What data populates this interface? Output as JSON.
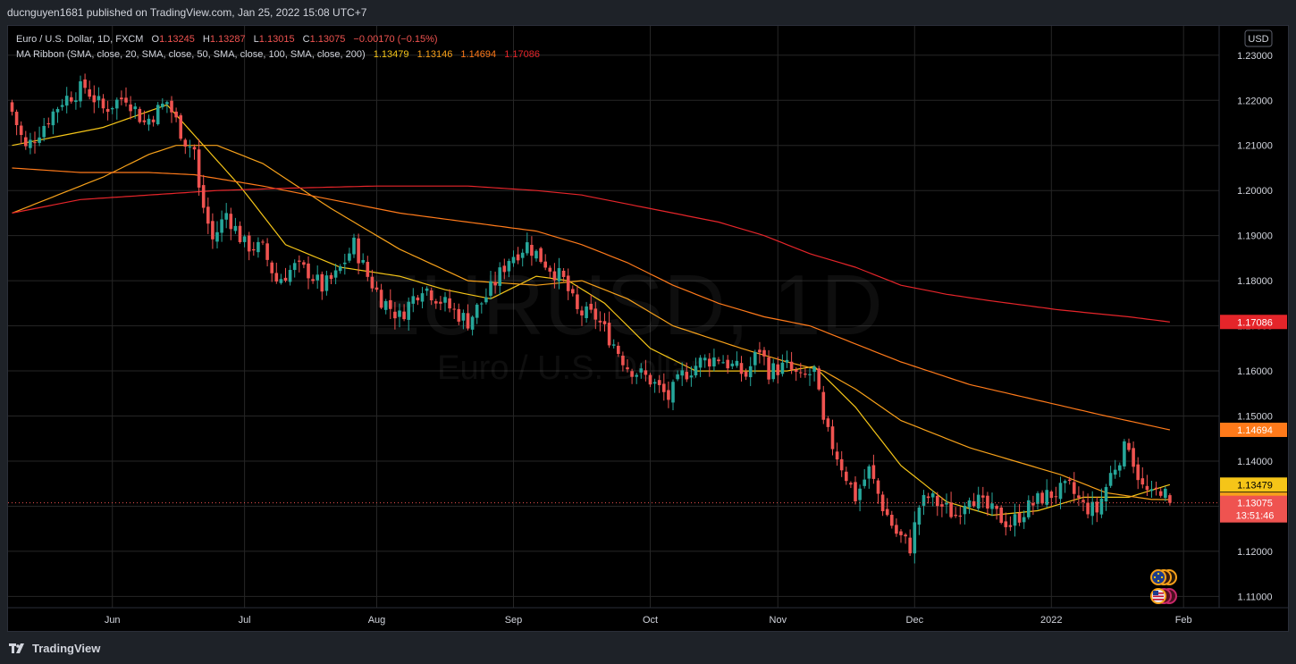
{
  "header": {
    "published_line": "ducnguyen1681 published on TradingView.com, Jan 25, 2022 15:08 UTC+7"
  },
  "footer": {
    "brand": "TradingView"
  },
  "legend": {
    "symbol_line": {
      "name": "Euro / U.S. Dollar, 1D, FXCM",
      "o_label": "O",
      "o_value": "1.13245",
      "h_label": "H",
      "h_value": "1.13287",
      "l_label": "L",
      "l_value": "1.13015",
      "c_label": "C",
      "c_value": "1.13075",
      "change": "−0.00170 (−0.15%)"
    },
    "ma_line": {
      "name": "MA Ribbon (SMA, close, 20, SMA, close, 50, SMA, close, 100, SMA, close, 200)",
      "v20": "1.13479",
      "v50": "1.13146",
      "v100": "1.14694",
      "v200": "1.17086"
    }
  },
  "currency_button": "USD",
  "watermark": {
    "symbol": "EURUSD, 1D",
    "description": "Euro / U.S. Dollar"
  },
  "price_labels": {
    "ma200": "1.17086",
    "ma100": "1.14694",
    "ma20": "1.13479",
    "ma50": "1.13146",
    "last": "1.13075",
    "countdown": "13:51:46"
  },
  "colors": {
    "up": "#26a69a",
    "down": "#ef5350",
    "ma20": "#f5c518",
    "ma50": "#f7a11a",
    "ma100": "#ff7a1a",
    "ma200": "#e5252a",
    "text": "#d1d4dc",
    "grid": "#262626"
  },
  "chart_data": {
    "type": "candlestick",
    "symbol": "EURUSD",
    "interval": "1D",
    "ylim": [
      1.1075,
      1.2365
    ],
    "y_ticks": [
      "1.11000",
      "1.12000",
      "1.13000",
      "1.14000",
      "1.15000",
      "1.16000",
      "1.17000",
      "1.18000",
      "1.19000",
      "1.20000",
      "1.21000",
      "1.22000",
      "1.23000"
    ],
    "x_ticks": [
      "Jun",
      "Jul",
      "Aug",
      "Sep",
      "Oct",
      "Nov",
      "Dec",
      "2022",
      "Feb"
    ],
    "close_anchors": [
      [
        0,
        1.2175
      ],
      [
        3,
        1.2092
      ],
      [
        8,
        1.216
      ],
      [
        11,
        1.22
      ],
      [
        16,
        1.223
      ],
      [
        20,
        1.218
      ],
      [
        25,
        1.221
      ],
      [
        29,
        1.215
      ],
      [
        34,
        1.2197
      ],
      [
        38,
        1.211
      ],
      [
        40,
        1.209
      ],
      [
        41,
        1.2
      ],
      [
        44,
        1.189
      ],
      [
        47,
        1.195
      ],
      [
        51,
        1.188
      ],
      [
        55,
        1.187
      ],
      [
        58,
        1.18
      ],
      [
        62,
        1.183
      ],
      [
        65,
        1.182
      ],
      [
        68,
        1.1785
      ],
      [
        71,
        1.181
      ],
      [
        75,
        1.188
      ],
      [
        78,
        1.181
      ],
      [
        81,
        1.176
      ],
      [
        85,
        1.172
      ],
      [
        90,
        1.179
      ],
      [
        96,
        1.174
      ],
      [
        100,
        1.171
      ],
      [
        105,
        1.178
      ],
      [
        109,
        1.185
      ],
      [
        113,
        1.188
      ],
      [
        117,
        1.184
      ],
      [
        121,
        1.18
      ],
      [
        124,
        1.173
      ],
      [
        128,
        1.172
      ],
      [
        132,
        1.166
      ],
      [
        135,
        1.161
      ],
      [
        140,
        1.158
      ],
      [
        144,
        1.154
      ],
      [
        147,
        1.159
      ],
      [
        151,
        1.162
      ],
      [
        155,
        1.163
      ],
      [
        158,
        1.161
      ],
      [
        161,
        1.159
      ],
      [
        164,
        1.165
      ],
      [
        166,
        1.16
      ],
      [
        170,
        1.161
      ],
      [
        173,
        1.158
      ],
      [
        176,
        1.16
      ],
      [
        178,
        1.148
      ],
      [
        182,
        1.139
      ],
      [
        185,
        1.132
      ],
      [
        188,
        1.138
      ],
      [
        191,
        1.13
      ],
      [
        194,
        1.124
      ],
      [
        197,
        1.121
      ],
      [
        199,
        1.13
      ],
      [
        201,
        1.132
      ],
      [
        204,
        1.13
      ],
      [
        207,
        1.128
      ],
      [
        210,
        1.133
      ],
      [
        213,
        1.13
      ],
      [
        216,
        1.128
      ],
      [
        219,
        1.126
      ],
      [
        222,
        1.129
      ],
      [
        226,
        1.132
      ],
      [
        229,
        1.133
      ],
      [
        232,
        1.134
      ],
      [
        235,
        1.13
      ],
      [
        238,
        1.129
      ],
      [
        241,
        1.137
      ],
      [
        243,
        1.141
      ],
      [
        245,
        1.144
      ],
      [
        246,
        1.14
      ],
      [
        248,
        1.134
      ],
      [
        250,
        1.132
      ],
      [
        252,
        1.134
      ],
      [
        254,
        1.1307
      ]
    ],
    "ma_series": [
      {
        "name": "SMA 20",
        "period": 20,
        "last": 1.13479
      },
      {
        "name": "SMA 50",
        "period": 50,
        "last": 1.13146
      },
      {
        "name": "SMA 100",
        "period": 100,
        "last": 1.14694
      },
      {
        "name": "SMA 200",
        "period": 200,
        "last": 1.17086
      }
    ],
    "ma_points": {
      "SMA 20": [
        [
          0,
          1.21
        ],
        [
          20,
          1.214
        ],
        [
          34,
          1.219
        ],
        [
          42,
          1.21
        ],
        [
          50,
          1.201
        ],
        [
          60,
          1.188
        ],
        [
          72,
          1.183
        ],
        [
          85,
          1.181
        ],
        [
          95,
          1.178
        ],
        [
          105,
          1.176
        ],
        [
          115,
          1.181
        ],
        [
          122,
          1.18
        ],
        [
          130,
          1.175
        ],
        [
          140,
          1.165
        ],
        [
          150,
          1.16
        ],
        [
          158,
          1.16
        ],
        [
          170,
          1.16
        ],
        [
          176,
          1.161
        ],
        [
          185,
          1.152
        ],
        [
          195,
          1.139
        ],
        [
          205,
          1.131
        ],
        [
          215,
          1.128
        ],
        [
          225,
          1.129
        ],
        [
          235,
          1.132
        ],
        [
          245,
          1.132
        ],
        [
          254,
          1.13479
        ]
      ],
      "SMA 50": [
        [
          0,
          1.195
        ],
        [
          10,
          1.199
        ],
        [
          20,
          1.203
        ],
        [
          30,
          1.208
        ],
        [
          36,
          1.21
        ],
        [
          45,
          1.21
        ],
        [
          55,
          1.206
        ],
        [
          70,
          1.196
        ],
        [
          85,
          1.187
        ],
        [
          100,
          1.18
        ],
        [
          115,
          1.179
        ],
        [
          125,
          1.18
        ],
        [
          135,
          1.176
        ],
        [
          145,
          1.17
        ],
        [
          160,
          1.165
        ],
        [
          170,
          1.162
        ],
        [
          178,
          1.16
        ],
        [
          185,
          1.156
        ],
        [
          195,
          1.149
        ],
        [
          210,
          1.143
        ],
        [
          220,
          1.14
        ],
        [
          230,
          1.137
        ],
        [
          240,
          1.133
        ],
        [
          250,
          1.1315
        ],
        [
          254,
          1.13146
        ]
      ],
      "SMA 100": [
        [
          0,
          1.205
        ],
        [
          15,
          1.204
        ],
        [
          30,
          1.204
        ],
        [
          40,
          1.2035
        ],
        [
          55,
          1.201
        ],
        [
          70,
          1.198
        ],
        [
          85,
          1.195
        ],
        [
          100,
          1.193
        ],
        [
          115,
          1.191
        ],
        [
          125,
          1.188
        ],
        [
          135,
          1.184
        ],
        [
          145,
          1.179
        ],
        [
          155,
          1.175
        ],
        [
          165,
          1.172
        ],
        [
          175,
          1.17
        ],
        [
          185,
          1.166
        ],
        [
          195,
          1.162
        ],
        [
          210,
          1.157
        ],
        [
          225,
          1.1535
        ],
        [
          240,
          1.15
        ],
        [
          254,
          1.14694
        ]
      ],
      "SMA 200": [
        [
          0,
          1.195
        ],
        [
          15,
          1.198
        ],
        [
          30,
          1.199
        ],
        [
          45,
          1.2
        ],
        [
          60,
          1.2005
        ],
        [
          80,
          1.201
        ],
        [
          100,
          1.201
        ],
        [
          115,
          1.2
        ],
        [
          125,
          1.199
        ],
        [
          140,
          1.196
        ],
        [
          155,
          1.193
        ],
        [
          165,
          1.19
        ],
        [
          175,
          1.186
        ],
        [
          185,
          1.183
        ],
        [
          195,
          1.179
        ],
        [
          205,
          1.177
        ],
        [
          215,
          1.1755
        ],
        [
          230,
          1.1735
        ],
        [
          245,
          1.172
        ],
        [
          254,
          1.17086
        ]
      ]
    }
  }
}
